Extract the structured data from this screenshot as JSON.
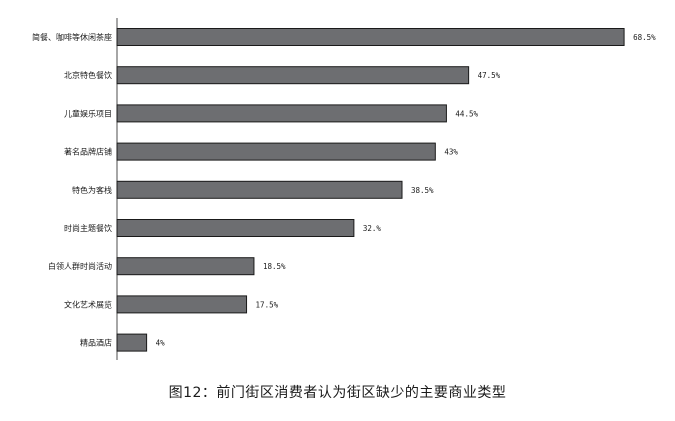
{
  "caption": "图12：前门街区消费者认为街区缺少的主要商业类型",
  "chart_data": {
    "type": "bar",
    "orientation": "horizontal",
    "categories": [
      "简餐、咖啡等休闲茶座",
      "北京特色餐饮",
      "儿童娱乐项目",
      "著名品牌店铺",
      "特色为客栈",
      "时尚主题餐饮",
      "白领人群时尚活动",
      "文化艺术展览",
      "精品酒店"
    ],
    "values": [
      68.5,
      47.5,
      44.5,
      43,
      38.5,
      32,
      18.5,
      17.5,
      4
    ],
    "value_labels": [
      "68.5%",
      "47.5%",
      "44.5%",
      "43%",
      "38.5%",
      "32.%",
      "18.5%",
      "17.5%",
      "4%"
    ],
    "xlim": [
      0,
      72
    ],
    "grid": false,
    "bar_color": "#6d6e71",
    "title": "",
    "xlabel": "",
    "ylabel": ""
  }
}
